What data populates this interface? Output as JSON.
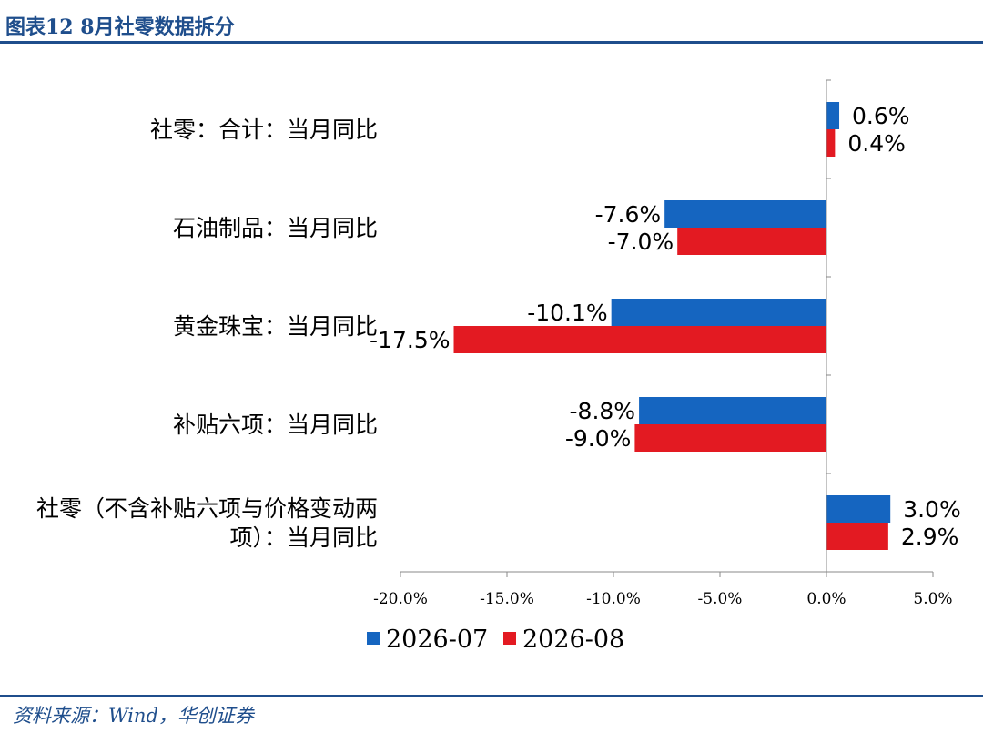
{
  "figure_title": "图表12  8月社零数据拆分",
  "source_text": "资料来源：Wind，华创证券",
  "colors": {
    "series_1": "#1565c0",
    "series_2": "#e31a22",
    "title": "#1f4e8c"
  },
  "chart_data": {
    "type": "bar",
    "orientation": "horizontal",
    "categories": [
      [
        "社零：合计：当月同比"
      ],
      [
        "石油制品：当月同比"
      ],
      [
        "黄金珠宝：当月同比"
      ],
      [
        "补贴六项：当月同比"
      ],
      [
        "社零（不含补贴六项与价格变动两",
        "项）：当月同比"
      ]
    ],
    "series": [
      {
        "name": "2026-07",
        "values": [
          0.6,
          -7.6,
          -10.1,
          -8.8,
          3.0
        ],
        "labels": [
          "0.6%",
          "-7.6%",
          "-10.1%",
          "-8.8%",
          "3.0%"
        ]
      },
      {
        "name": "2026-08",
        "values": [
          0.4,
          -7.0,
          -17.5,
          -9.0,
          2.9
        ],
        "labels": [
          "0.4%",
          "-7.0%",
          "-17.5%",
          "-9.0%",
          "2.9%"
        ]
      }
    ],
    "xlim": [
      -20,
      5
    ],
    "xticks": [
      -20,
      -15,
      -10,
      -5,
      0,
      5
    ],
    "xtick_labels": [
      "-20.0%",
      "-15.0%",
      "-10.0%",
      "-5.0%",
      "0.0%",
      "5.0%"
    ],
    "legend": "bottom",
    "grid": false
  }
}
